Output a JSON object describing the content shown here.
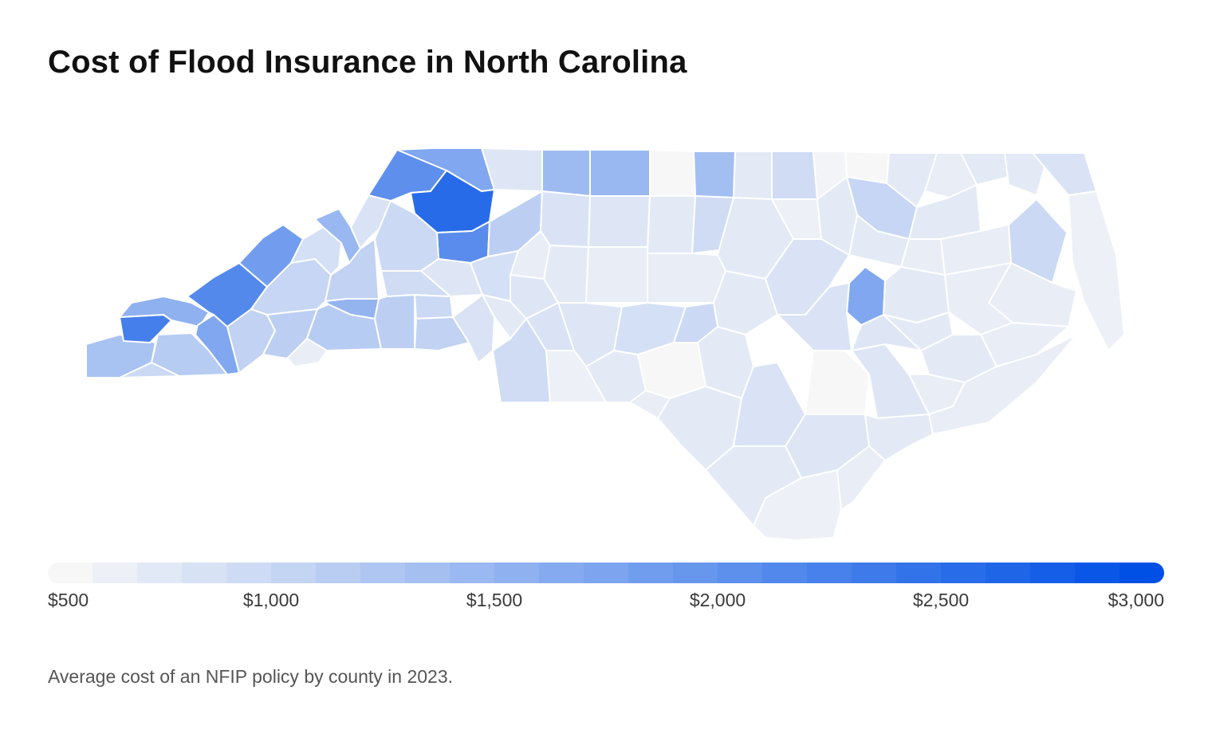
{
  "title": "Cost of Flood Insurance in North Carolina",
  "caption": "Average cost of an NFIP policy by county in 2023.",
  "legend": {
    "min": 500,
    "max": 3000,
    "ticks": [
      "$500",
      "$1,000",
      "$1,500",
      "$2,000",
      "$2,500",
      "$3,000"
    ],
    "color_low": "#f7f7f7",
    "color_high": "#0050e6",
    "steps": 25
  },
  "colors": {
    "county_border": "#ffffff",
    "title": "#111111",
    "caption": "#555555"
  },
  "map_data": {
    "region": "North Carolina",
    "unit": "USD per policy",
    "counties": [
      {
        "id": "cherokee",
        "value": 1300
      },
      {
        "id": "clay",
        "value": 950
      },
      {
        "id": "graham",
        "value": 2300
      },
      {
        "id": "macon",
        "value": 1150
      },
      {
        "id": "swain",
        "value": 1550
      },
      {
        "id": "jackson",
        "value": 1700
      },
      {
        "id": "haywood",
        "value": 2150
      },
      {
        "id": "transylvania",
        "value": 1050
      },
      {
        "id": "henderson",
        "value": 1100
      },
      {
        "id": "buncombe",
        "value": 1000
      },
      {
        "id": "madison",
        "value": 1850
      },
      {
        "id": "yancey",
        "value": 850
      },
      {
        "id": "mitchell",
        "value": 1450
      },
      {
        "id": "avery",
        "value": 800
      },
      {
        "id": "watauga",
        "value": 2050
      },
      {
        "id": "ashe",
        "value": 1700
      },
      {
        "id": "alleghany",
        "value": 750
      },
      {
        "id": "wilkes",
        "value": 2600
      },
      {
        "id": "surry",
        "value": 1400
      },
      {
        "id": "stokes",
        "value": 1450
      },
      {
        "id": "rockingham",
        "value": 500
      },
      {
        "id": "caswell",
        "value": 1350
      },
      {
        "id": "person",
        "value": 700
      },
      {
        "id": "granville",
        "value": 900
      },
      {
        "id": "vance",
        "value": 550
      },
      {
        "id": "warren",
        "value": 500
      },
      {
        "id": "halifax",
        "value": 1000
      },
      {
        "id": "northampton",
        "value": 700
      },
      {
        "id": "hertford",
        "value": 650
      },
      {
        "id": "gates",
        "value": 700
      },
      {
        "id": "currituck",
        "value": 800
      },
      {
        "id": "camden",
        "value": 700
      },
      {
        "id": "dare",
        "value": 600
      },
      {
        "id": "yadkin",
        "value": 2100
      },
      {
        "id": "forsyth",
        "value": 1100
      },
      {
        "id": "guilford",
        "value": 800
      },
      {
        "id": "alamance",
        "value": 750
      },
      {
        "id": "orange",
        "value": 700
      },
      {
        "id": "durham",
        "value": 900
      },
      {
        "id": "wake",
        "value": 700
      },
      {
        "id": "franklin",
        "value": 600
      },
      {
        "id": "nash",
        "value": 700
      },
      {
        "id": "edgecombe",
        "value": 700
      },
      {
        "id": "martin",
        "value": 650
      },
      {
        "id": "bertie",
        "value": 700
      },
      {
        "id": "washington",
        "value": 650
      },
      {
        "id": "tyrrell",
        "value": 950
      },
      {
        "id": "hyde",
        "value": 650
      },
      {
        "id": "burke",
        "value": 1050
      },
      {
        "id": "caldwell",
        "value": 950
      },
      {
        "id": "alexander",
        "value": 750
      },
      {
        "id": "iredell",
        "value": 850
      },
      {
        "id": "davie",
        "value": 650
      },
      {
        "id": "davidson",
        "value": 700
      },
      {
        "id": "randolph",
        "value": 650
      },
      {
        "id": "chatham",
        "value": 650
      },
      {
        "id": "harnett",
        "value": 700
      },
      {
        "id": "johnston",
        "value": 800
      },
      {
        "id": "wilson",
        "value": 1700
      },
      {
        "id": "pitt",
        "value": 700
      },
      {
        "id": "beaufort",
        "value": 650
      },
      {
        "id": "mcdowell",
        "value": 1500
      },
      {
        "id": "rutherford",
        "value": 1150
      },
      {
        "id": "polk",
        "value": 650
      },
      {
        "id": "cleveland",
        "value": 1100
      },
      {
        "id": "lincoln",
        "value": 950
      },
      {
        "id": "catawba",
        "value": 900
      },
      {
        "id": "gaston",
        "value": 1050
      },
      {
        "id": "mecklenburg",
        "value": 800
      },
      {
        "id": "cabarrus",
        "value": 700
      },
      {
        "id": "rowan",
        "value": 750
      },
      {
        "id": "stanly",
        "value": 800
      },
      {
        "id": "union",
        "value": 900
      },
      {
        "id": "anson",
        "value": 600
      },
      {
        "id": "montgomery",
        "value": 750
      },
      {
        "id": "moore",
        "value": 850
      },
      {
        "id": "lee",
        "value": 950
      },
      {
        "id": "richmond",
        "value": 700
      },
      {
        "id": "scotland",
        "value": 650
      },
      {
        "id": "hoke",
        "value": 500
      },
      {
        "id": "cumberland",
        "value": 700
      },
      {
        "id": "sampson",
        "value": 500
      },
      {
        "id": "wayne",
        "value": 800
      },
      {
        "id": "duplin",
        "value": 750
      },
      {
        "id": "lenoir",
        "value": 750
      },
      {
        "id": "greene",
        "value": 700
      },
      {
        "id": "craven",
        "value": 700
      },
      {
        "id": "pamlico",
        "value": 650
      },
      {
        "id": "robeson",
        "value": 700
      },
      {
        "id": "bladen",
        "value": 800
      },
      {
        "id": "columbus",
        "value": 700
      },
      {
        "id": "pender",
        "value": 750
      },
      {
        "id": "onslow",
        "value": 700
      },
      {
        "id": "jones",
        "value": 650
      },
      {
        "id": "carteret",
        "value": 650
      },
      {
        "id": "brunswick",
        "value": 600
      },
      {
        "id": "new-hanover",
        "value": 650
      }
    ]
  }
}
